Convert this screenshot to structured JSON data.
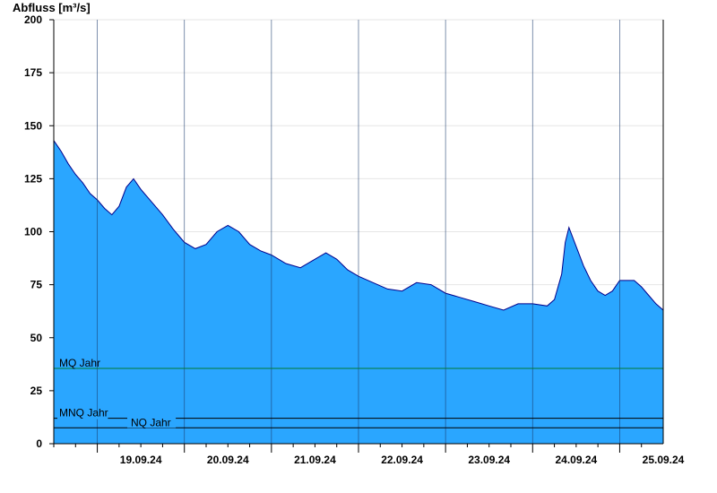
{
  "chart_data": {
    "type": "area",
    "ylabel": "Abfluss [m³/s]",
    "ylim": [
      0,
      200
    ],
    "yticks": [
      0,
      25,
      50,
      75,
      100,
      125,
      150,
      175,
      200
    ],
    "xlim": [
      "2024-09-18T12:00",
      "2024-09-25T12:00"
    ],
    "xtick_labels": [
      "19.09.24",
      "20.09.24",
      "21.09.24",
      "22.09.24",
      "23.09.24",
      "24.09.24",
      "25.09.24"
    ],
    "grid": true,
    "fill_color": "#2aa6ff",
    "line_color": "#00008b",
    "series": [
      {
        "x": [
          "2024-09-18T12:00",
          "2024-09-18T14:00",
          "2024-09-18T16:00",
          "2024-09-18T18:00",
          "2024-09-18T20:00",
          "2024-09-18T22:00",
          "2024-09-19T00:00",
          "2024-09-19T02:00",
          "2024-09-19T04:00",
          "2024-09-19T06:00",
          "2024-09-19T08:00",
          "2024-09-19T10:00",
          "2024-09-19T12:00",
          "2024-09-19T15:00",
          "2024-09-19T18:00",
          "2024-09-19T21:00",
          "2024-09-20T00:00",
          "2024-09-20T03:00",
          "2024-09-20T06:00",
          "2024-09-20T09:00",
          "2024-09-20T12:00",
          "2024-09-20T15:00",
          "2024-09-20T18:00",
          "2024-09-20T21:00",
          "2024-09-21T00:00",
          "2024-09-21T04:00",
          "2024-09-21T08:00",
          "2024-09-21T12:00",
          "2024-09-21T15:00",
          "2024-09-21T18:00",
          "2024-09-21T21:00",
          "2024-09-22T00:00",
          "2024-09-22T04:00",
          "2024-09-22T08:00",
          "2024-09-22T12:00",
          "2024-09-22T16:00",
          "2024-09-22T20:00",
          "2024-09-23T00:00",
          "2024-09-23T04:00",
          "2024-09-23T08:00",
          "2024-09-23T12:00",
          "2024-09-23T16:00",
          "2024-09-23T20:00",
          "2024-09-24T00:00",
          "2024-09-24T04:00",
          "2024-09-24T06:00",
          "2024-09-24T08:00",
          "2024-09-24T09:00",
          "2024-09-24T10:00",
          "2024-09-24T12:00",
          "2024-09-24T14:00",
          "2024-09-24T16:00",
          "2024-09-24T18:00",
          "2024-09-24T20:00",
          "2024-09-24T22:00",
          "2024-09-25T00:00",
          "2024-09-25T02:00",
          "2024-09-25T04:00",
          "2024-09-25T06:00",
          "2024-09-25T08:00",
          "2024-09-25T10:00",
          "2024-09-25T12:00"
        ],
        "y": [
          143,
          138,
          132,
          127,
          123,
          118,
          115,
          111,
          108,
          112,
          121,
          125,
          120,
          114,
          108,
          101,
          95,
          92,
          94,
          100,
          103,
          100,
          94,
          91,
          89,
          85,
          83,
          87,
          90,
          87,
          82,
          79,
          76,
          73,
          72,
          76,
          75,
          71,
          69,
          67,
          65,
          63,
          66,
          66,
          65,
          68,
          80,
          95,
          102,
          93,
          84,
          77,
          72,
          70,
          72,
          77,
          77,
          77,
          74,
          70,
          66,
          63
        ]
      }
    ],
    "reference_lines": [
      {
        "label": "MQ Jahr",
        "value": 35.5,
        "color": "#007a33"
      },
      {
        "label": "MNQ Jahr",
        "value": 12,
        "color": "#000000"
      },
      {
        "label": "NQ Jahr",
        "value": 7.5,
        "color": "#000000"
      }
    ]
  }
}
